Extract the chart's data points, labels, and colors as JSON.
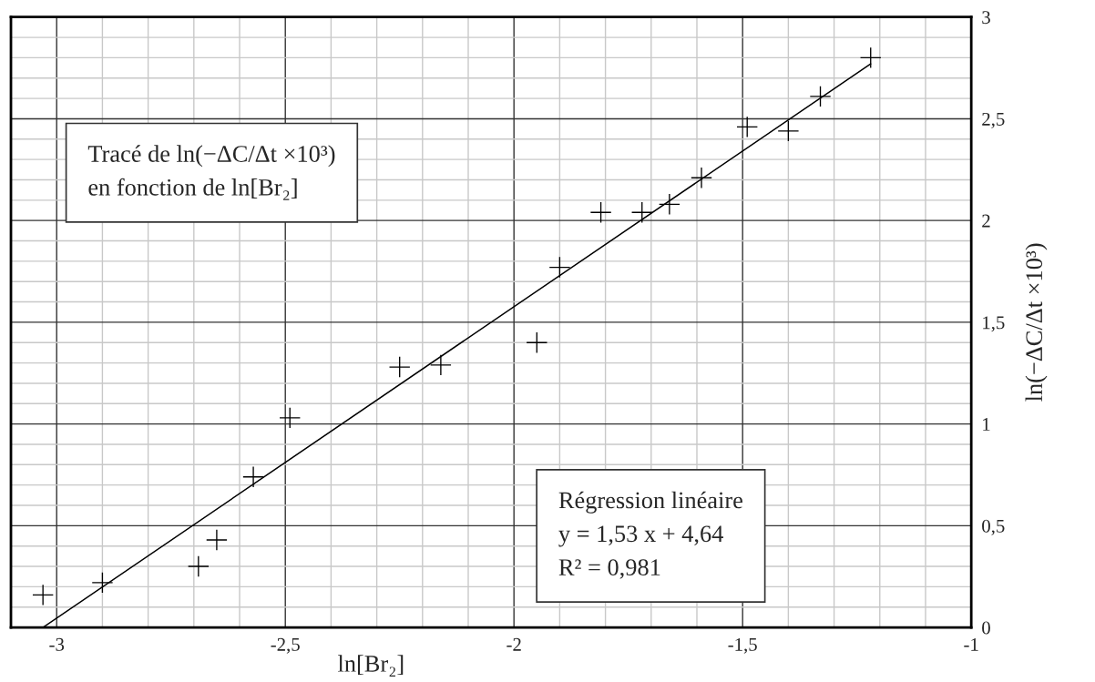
{
  "chart_data": {
    "type": "scatter",
    "xlabel": "ln[Br₂]",
    "ylabel": "ln(−ΔC/Δt ×10³)",
    "annotations": [
      "Tracé de ln(−ΔC/Δt ×10³)\nen fonction de ln[Br₂]",
      "Régression linéaire\ny = 1,53 x + 4,64\nR² = 0,981"
    ],
    "series": [
      {
        "type": "scatter",
        "color": "#000000",
        "marker": "cross",
        "x": [
          -3.03,
          -2.9,
          -2.69,
          -2.65,
          -2.57,
          -2.49,
          -2.25,
          -2.16,
          -1.95,
          -1.9,
          -1.81,
          -1.72,
          -1.66,
          -1.59,
          -1.49,
          -1.4,
          -1.33,
          -1.22
        ],
        "values": [
          0.16,
          0.22,
          0.3,
          0.43,
          0.74,
          1.03,
          1.28,
          1.29,
          1.4,
          1.77,
          2.04,
          2.04,
          2.08,
          2.21,
          2.46,
          2.44,
          2.61,
          2.8
        ]
      },
      {
        "type": "line",
        "color": "#000000",
        "marker": "none",
        "line_style": "solid",
        "x": [
          -3.03,
          -1.22
        ],
        "values": [
          0.0,
          2.77
        ]
      }
    ],
    "xlim": [
      -3.1,
      -1
    ],
    "xticks": [
      -3,
      {
        "value": -2.5,
        "label": "-2,5"
      },
      -2,
      {
        "value": -1.5,
        "label": "-1,5"
      },
      -1
    ],
    "ylim": [
      0,
      3
    ],
    "yticks": [
      0,
      {
        "value": 0.5,
        "label": "0,5"
      },
      1,
      {
        "value": 1.5,
        "label": "1,5"
      },
      2,
      {
        "value": 2.5,
        "label": "2,5"
      },
      3
    ],
    "grid": true,
    "legend": false
  }
}
